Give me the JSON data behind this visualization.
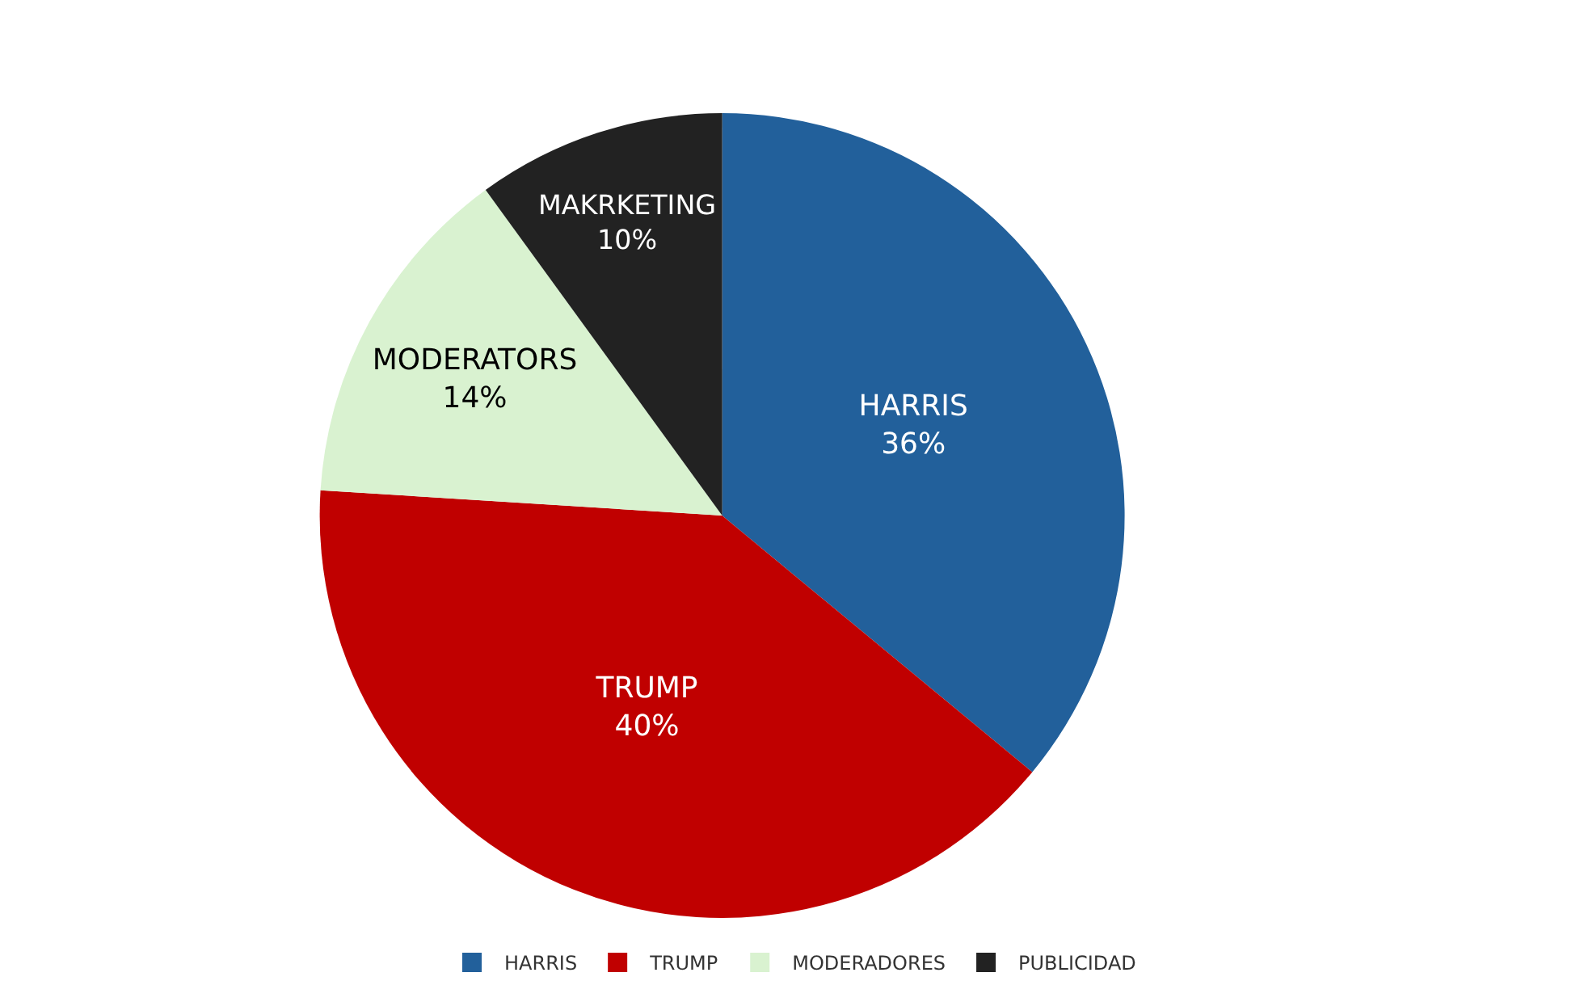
{
  "chart_data": {
    "type": "pie",
    "categories": [
      "HARRIS",
      "TRUMP",
      "MODERADORES",
      "PUBLICIDAD"
    ],
    "values": [
      36,
      40,
      14,
      10
    ],
    "colors": [
      "#22609b",
      "#c00000",
      "#d9f2d0",
      "#222222"
    ],
    "value_labels": [
      "HARRIS\n36%",
      "TRUMP\n40%",
      "MODERATORS\n14%",
      "MAKRKETING\n10%"
    ],
    "legend": "bottom"
  }
}
